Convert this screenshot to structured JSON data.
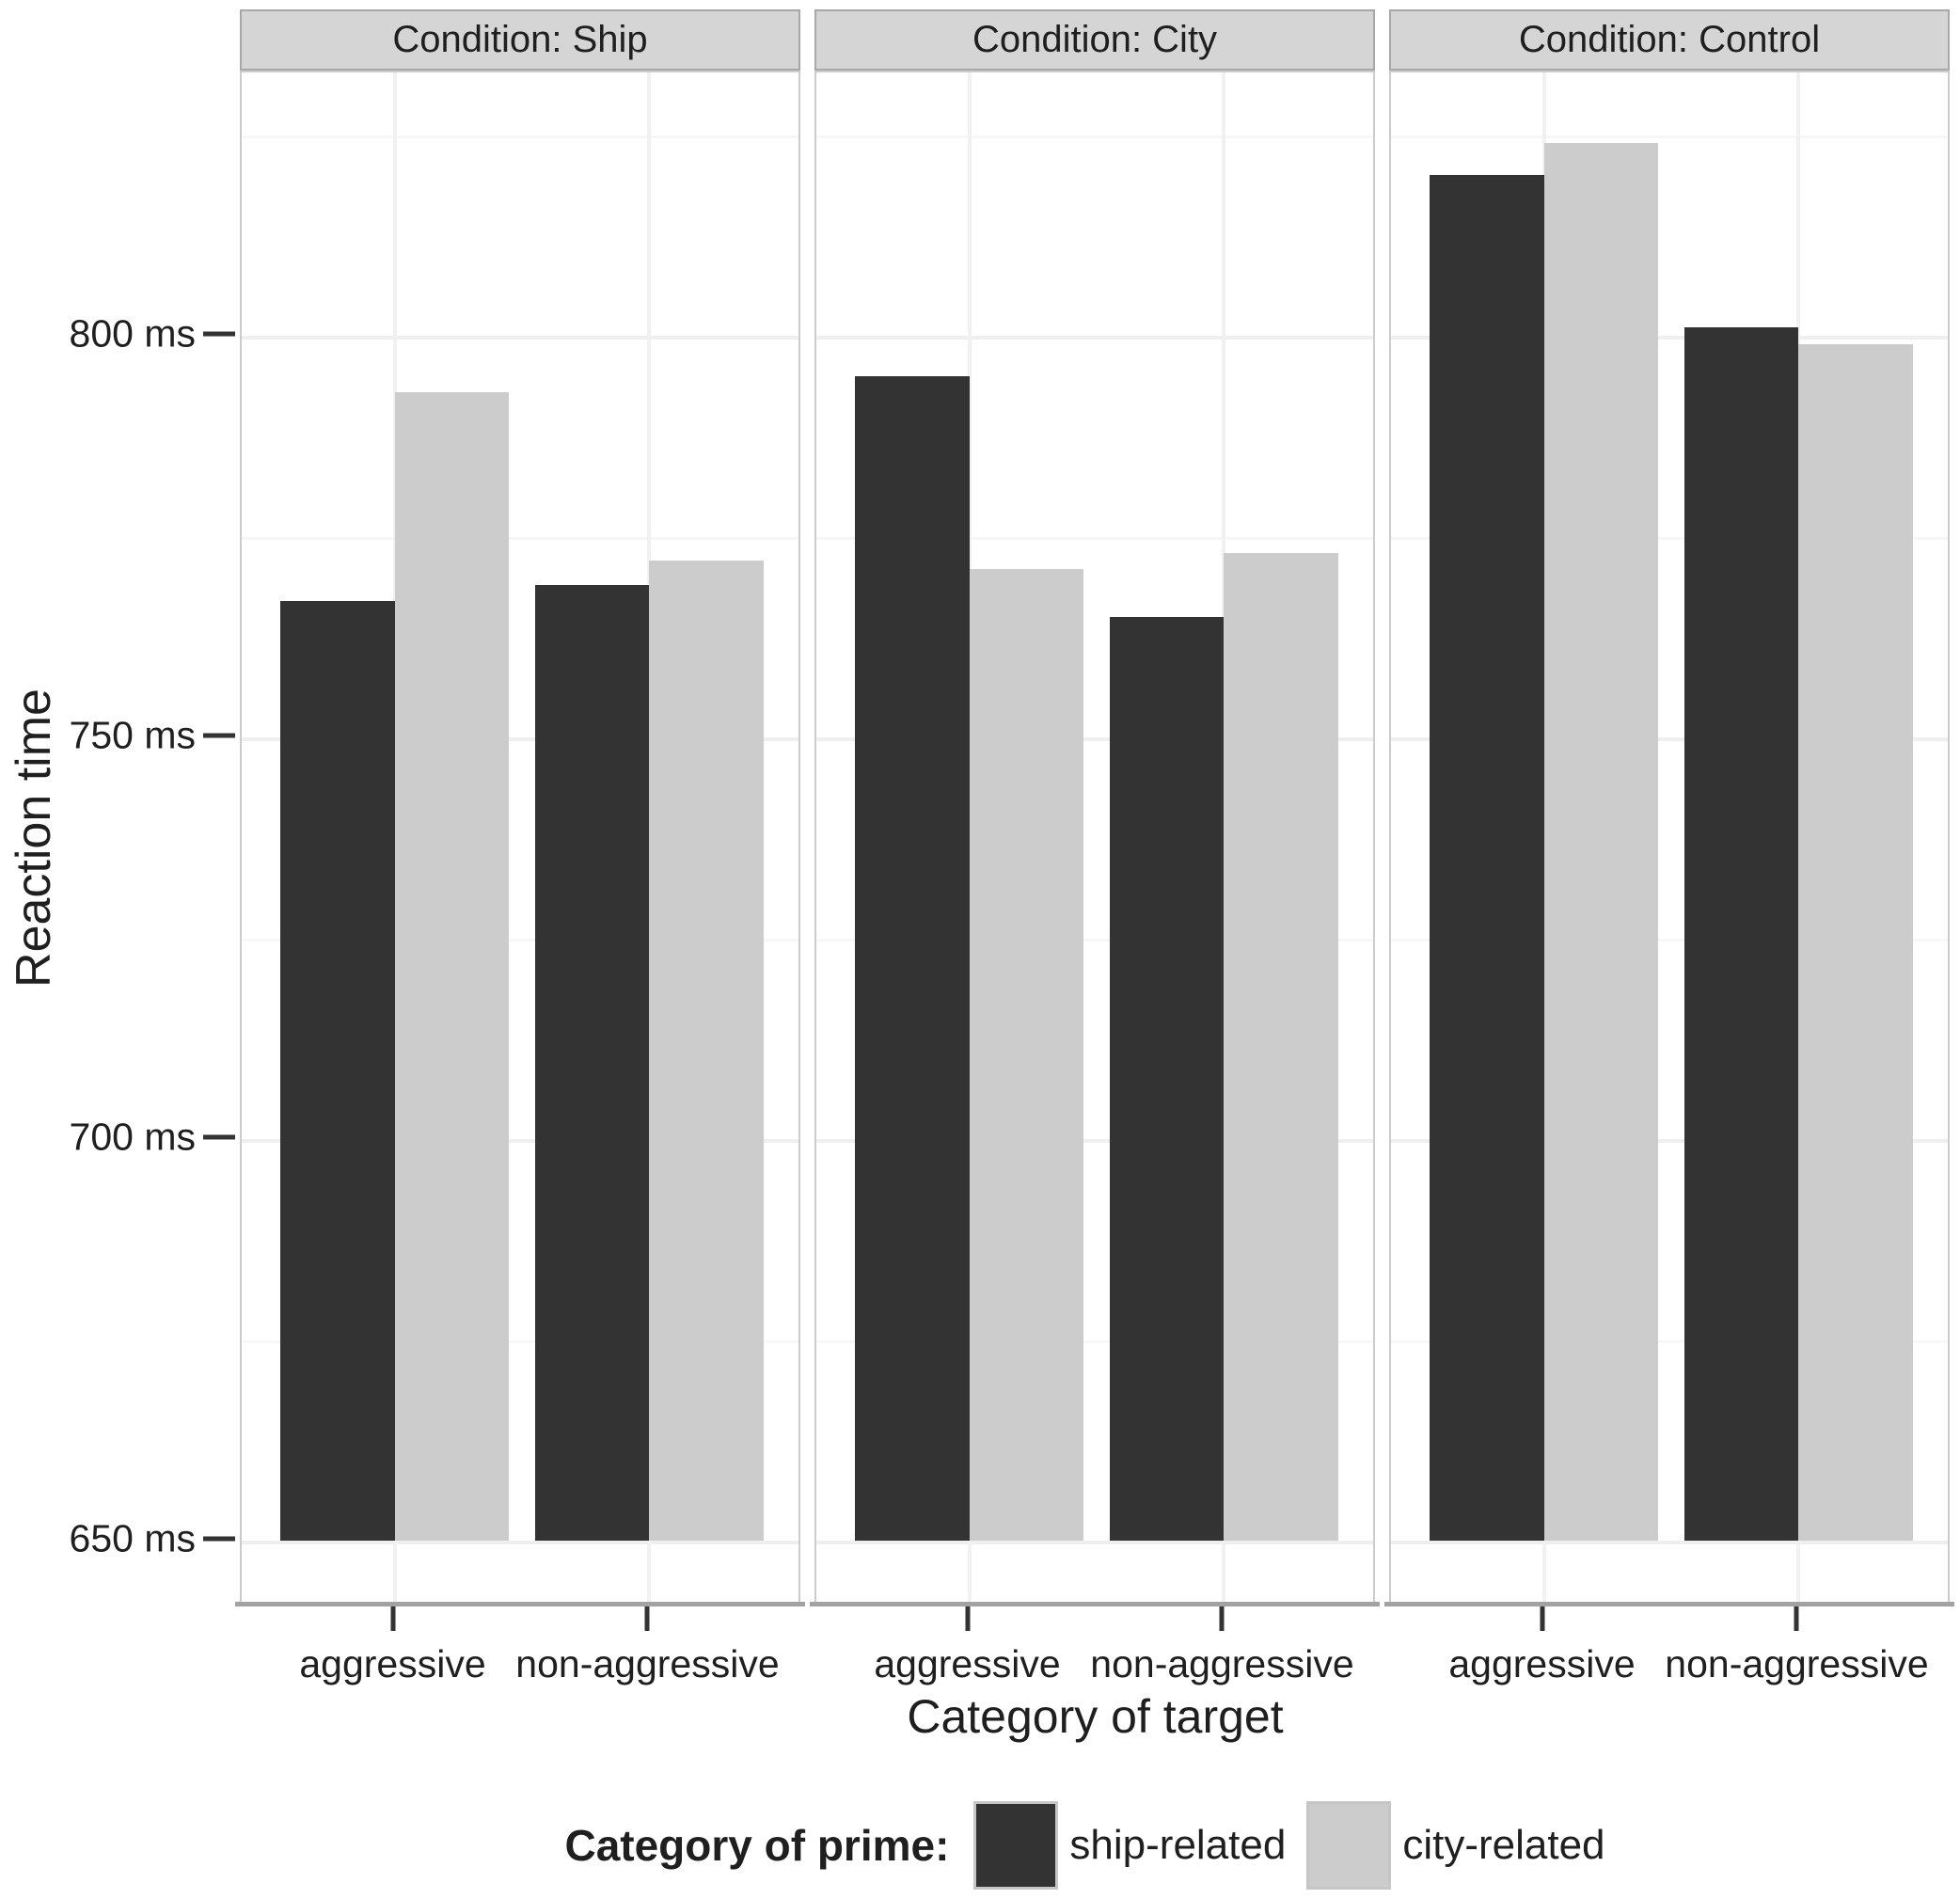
{
  "chart_data": {
    "type": "bar",
    "title": "",
    "ylabel": "Reaction time",
    "xlabel": "Category of target",
    "categories": [
      "aggressive",
      "non-aggressive"
    ],
    "ylim": [
      650,
      833
    ],
    "y_ticks": [
      {
        "value": 650,
        "label": "650 ms"
      },
      {
        "value": 700,
        "label": "700 ms"
      },
      {
        "value": 750,
        "label": "750 ms"
      },
      {
        "value": 800,
        "label": "800 ms"
      }
    ],
    "y_minor_ticks": [
      675,
      725,
      775,
      825
    ],
    "grid": "horizontal major+minor, vertical at category centers",
    "legend": {
      "title": "Category of prime:",
      "position": "bottom",
      "entries": [
        {
          "name": "ship-related",
          "color": "#333333"
        },
        {
          "name": "city-related",
          "color": "#cccccc"
        }
      ]
    },
    "facets": [
      {
        "label": "Condition: Ship",
        "series": [
          {
            "name": "ship-related",
            "values": [
              767,
              769
            ]
          },
          {
            "name": "city-related",
            "values": [
              793,
              772
            ]
          }
        ]
      },
      {
        "label": "Condition: City",
        "series": [
          {
            "name": "ship-related",
            "values": [
              795,
              765
            ]
          },
          {
            "name": "city-related",
            "values": [
              771,
              773
            ]
          }
        ]
      },
      {
        "label": "Condition: Control",
        "series": [
          {
            "name": "ship-related",
            "values": [
              820,
              801
            ]
          },
          {
            "name": "city-related",
            "values": [
              824,
              799
            ]
          }
        ]
      }
    ]
  },
  "colors": {
    "ship_related": "#333333",
    "city_related": "#cccccc",
    "strip_bg": "#d5d5d5",
    "panel_border": "#cccccc",
    "axis_line": "#a2a2a2",
    "grid_major": "#efefef",
    "grid_minor": "#f7f7f7",
    "text": "#1f1f1f"
  }
}
